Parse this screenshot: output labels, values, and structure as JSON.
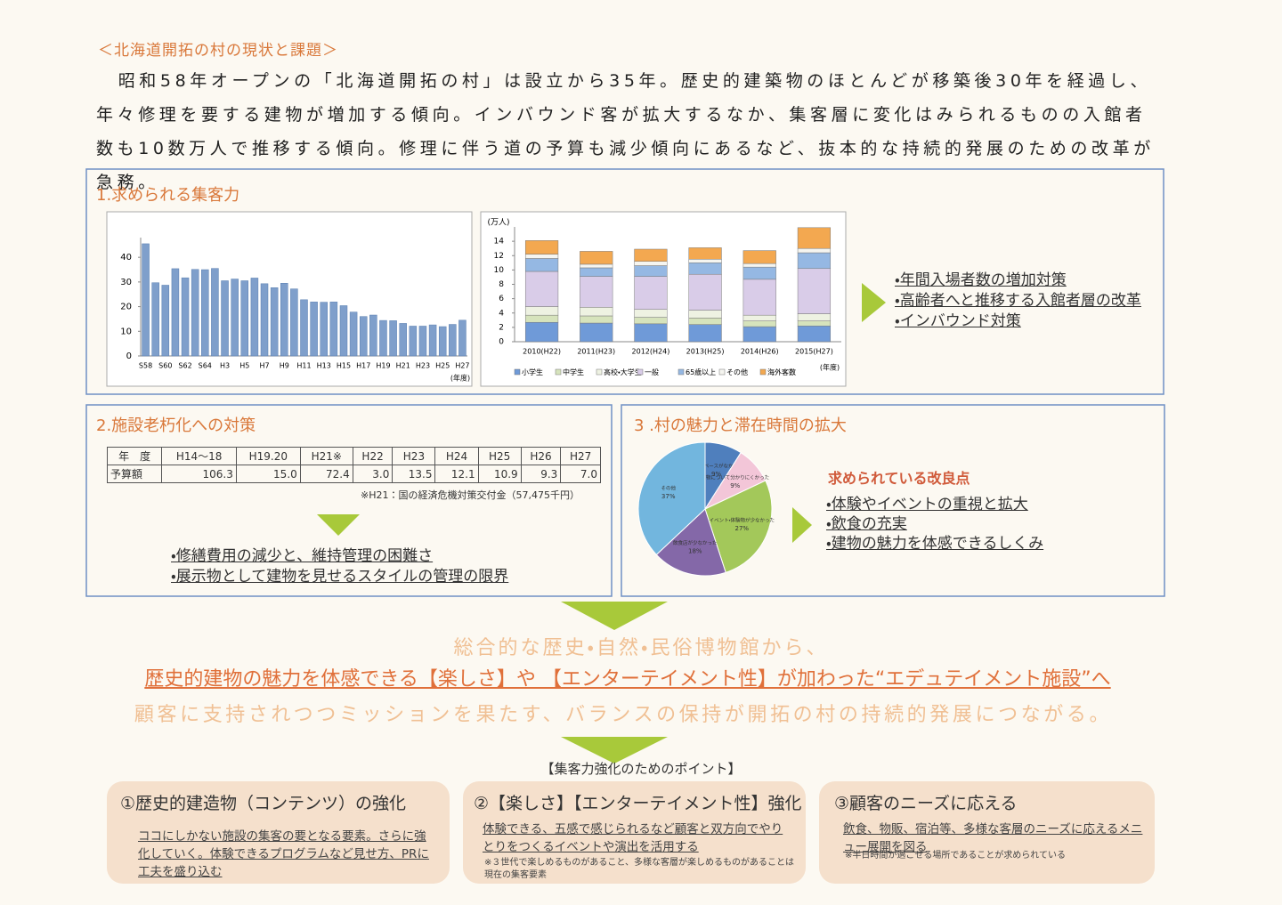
{
  "header": {
    "title": "＜北海道開拓の村の現状と課題＞",
    "intro": "昭和58年オープンの「北海道開拓の村」は設立から35年。歴史的建築物のほとんどが移築後30年を経過し、年々修理を要する建物が増加する傾向。インバウンド客が拡大するなか、集客層に変化はみられるものの入館者数も10数万人で推移する傾向。修理に伴う道の予算も減少傾向にあるなど、抜本的な持続的発展のための改革が急務。"
  },
  "section1": {
    "title": "1.求められる集客力",
    "bullets": [
      "・年間入場者数の増加対策",
      "・高齢者へと推移する入館者層の改革",
      "・インバウンド対策"
    ]
  },
  "chart_data": [
    {
      "type": "bar",
      "categories": [
        "S58",
        null,
        "S60",
        null,
        "S62",
        null,
        "S64",
        null,
        "H3",
        null,
        "H5",
        null,
        "H7",
        null,
        "H9",
        null,
        "H11",
        null,
        "H13",
        null,
        "H15",
        null,
        "H17",
        null,
        "H19",
        null,
        "H21",
        null,
        "H23",
        null,
        "H25",
        null,
        "H27"
      ],
      "values": [
        45.5,
        29.7,
        28.7,
        35.4,
        31.7,
        35.1,
        35.0,
        35.5,
        30.5,
        31.2,
        30.5,
        31.6,
        29.3,
        27.7,
        29.5,
        27.2,
        22.8,
        21.9,
        21.8,
        21.9,
        20.4,
        17.8,
        16.0,
        16.6,
        14.4,
        14.3,
        13.2,
        12.1,
        12.1,
        12.6,
        11.9,
        12.8,
        14.5
      ],
      "color": "#7f9fcb",
      "ylim": [
        0,
        48
      ],
      "yticks": [
        0,
        10,
        20,
        30,
        40
      ],
      "x_label": "(年度)"
    },
    {
      "type": "stacked_bar",
      "categories": [
        "2010(H22)",
        "2011(H23)",
        "2012(H24)",
        "2013(H25)",
        "2014(H26)",
        "2015(H27)"
      ],
      "series": [
        {
          "name": "小学生",
          "color": "#6f9ad8",
          "values": [
            2.7,
            2.6,
            2.5,
            2.4,
            2.1,
            2.2
          ]
        },
        {
          "name": "中学生",
          "color": "#d6e3bc",
          "values": [
            1.0,
            1.0,
            0.9,
            0.9,
            0.8,
            0.7
          ]
        },
        {
          "name": "高校・大学生",
          "color": "#eef2e2",
          "values": [
            1.2,
            1.2,
            1.1,
            1.1,
            0.8,
            1.0
          ]
        },
        {
          "name": "一般",
          "color": "#d9cce8",
          "values": [
            4.9,
            4.3,
            4.6,
            5.0,
            5.0,
            6.3
          ]
        },
        {
          "name": "65歳以上",
          "color": "#95b8e3",
          "values": [
            1.8,
            1.2,
            1.5,
            1.6,
            1.7,
            2.2
          ]
        },
        {
          "name": "その他",
          "color": "#f5f5f0",
          "values": [
            0.6,
            0.5,
            0.6,
            0.5,
            0.5,
            0.6
          ]
        },
        {
          "name": "海外客数",
          "color": "#f3a850",
          "values": [
            1.9,
            1.8,
            1.7,
            1.6,
            1.8,
            2.9
          ]
        }
      ],
      "ylim": [
        0,
        16
      ],
      "yticks": [
        0,
        2,
        4,
        6,
        8,
        10,
        12,
        14
      ],
      "y_label": "(万人)",
      "x_label": "(年度)"
    },
    {
      "type": "pie",
      "categories": [
        "体験スペースがなかった",
        "建物について分かりにくかった",
        "イベント・体験物が少なかった",
        "飲食店が少なかった",
        "その他"
      ],
      "values": [
        9,
        9,
        27,
        18,
        37
      ],
      "value_labels": [
        "9%",
        "9%",
        "27%",
        "18%",
        "37%"
      ],
      "colors": [
        "#4f7fbd",
        "#f3c6d8",
        "#a3c85a",
        "#8468a8",
        "#72b6de"
      ]
    }
  ],
  "section2": {
    "title": "2.施設老朽化への対策",
    "table": {
      "header": [
        "年　度",
        "H14〜18",
        "H19.20",
        "H21※",
        "H22",
        "H23",
        "H24",
        "H25",
        "H26",
        "H27"
      ],
      "rows": [
        [
          "予算額",
          "106.3",
          "15.0",
          "72.4",
          "3.0",
          "13.5",
          "12.1",
          "10.9",
          "9.3",
          "7.0"
        ]
      ]
    },
    "note": "※H21：国の経済危機対策交付金（57,475千円）",
    "bullets": [
      "・修繕費用の減少と、維持管理の困難さ",
      "・展示物として建物を見せるスタイルの管理の限界"
    ]
  },
  "section3": {
    "title": "3 .村の魅力と滞在時間の拡大",
    "subtitle": "求められている改良点",
    "bullets": [
      "・体験やイベントの重視と拡大",
      "・飲食の充実",
      "・建物の魅力を体感できるしくみ"
    ]
  },
  "conclusion": {
    "line1": "総合的な歴史・自然・民俗博物館から、",
    "line2": "歴史的建物の魅力を体感できる【楽しさ】や 【エンターテイメント性】が加わった“エデュテイメント施設”へ",
    "line3": "顧客に支持されつつミッションを果たす、バランスの保持が開拓の村の持続的発展につながる。"
  },
  "points": {
    "title": "【集客力強化のためのポイント】",
    "items": [
      {
        "title": "①歴史的建造物（コンテンツ）の強化",
        "body": "ココにしかない施設の集客の要となる要素。さらに強化していく。体験できるプログラムなど見せ方、PRに工夫を盛り込む"
      },
      {
        "title": "②【楽しさ】【エンターテイメント性】強化",
        "body": "体験できる、五感で感じられるなど顧客と双方向でやりとりをつくるイベントや演出を活用する",
        "note": "※３世代で楽しめるものがあること、多様な客層が楽しめるものがあることは現在の集客要素"
      },
      {
        "title": "③顧客のニーズに応える",
        "body": "飲食、物販、宿泊等、多様な客層のニーズに応えるメニュー展開を図る",
        "note": "※半日時間が過ごせる場所であることが求められている"
      }
    ]
  }
}
